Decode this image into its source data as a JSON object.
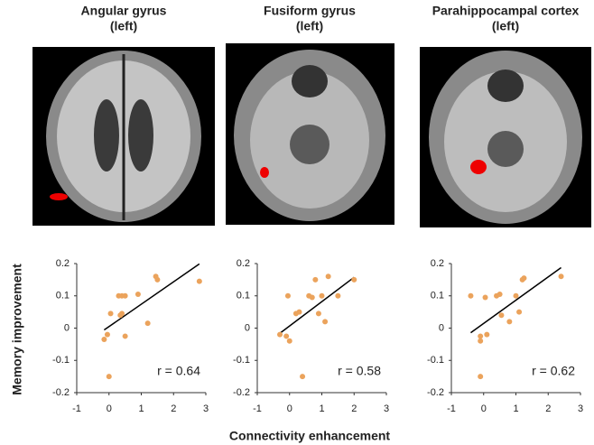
{
  "shared_axes": {
    "ylabel": "Memory improvement",
    "xlabel": "Connectivity enhancement"
  },
  "chart_data": [
    {
      "type": "scatter",
      "title": "Angular gyrus",
      "subtitle": "(left)",
      "annotation": "r = 0.64",
      "color": "#eba35c",
      "x": [
        -0.15,
        -0.05,
        0.05,
        0.0,
        0.3,
        0.4,
        0.5,
        0.35,
        0.4,
        0.5,
        0.9,
        1.2,
        1.45,
        1.5,
        2.8
      ],
      "y": [
        -0.035,
        -0.02,
        0.045,
        -0.15,
        0.1,
        0.1,
        0.1,
        0.04,
        0.045,
        -0.025,
        0.105,
        0.015,
        0.16,
        0.15,
        0.145
      ],
      "xlim": [
        -1,
        3
      ],
      "ylim": [
        -0.2,
        0.2
      ],
      "xticks": [
        -1,
        0,
        1,
        2,
        3
      ],
      "yticks": [
        -0.2,
        -0.1,
        0,
        0.1,
        0.2
      ]
    },
    {
      "type": "scatter",
      "title": "Fusiform gyrus",
      "subtitle": "(left)",
      "annotation": "r = 0.58",
      "color": "#eba35c",
      "x": [
        -0.3,
        -0.1,
        0.0,
        -0.05,
        0.2,
        0.3,
        0.4,
        0.6,
        0.7,
        0.8,
        0.9,
        1.0,
        1.1,
        1.2,
        1.5,
        2.0
      ],
      "y": [
        -0.02,
        -0.025,
        -0.04,
        0.1,
        0.045,
        0.05,
        -0.15,
        0.1,
        0.095,
        0.15,
        0.045,
        0.1,
        0.02,
        0.16,
        0.1,
        0.15
      ],
      "xlim": [
        -1,
        3
      ],
      "ylim": [
        -0.2,
        0.2
      ],
      "xticks": [
        -1,
        0,
        1,
        2,
        3
      ],
      "yticks": [
        -0.2,
        -0.1,
        0,
        0.1,
        0.2
      ]
    },
    {
      "type": "scatter",
      "title": "Parahippocampal cortex",
      "subtitle": "(left)",
      "annotation": "r = 0.62",
      "color": "#eba35c",
      "x": [
        -0.4,
        -0.1,
        -0.1,
        -0.1,
        0.05,
        0.1,
        0.4,
        0.5,
        0.55,
        0.8,
        1.0,
        1.1,
        1.2,
        1.25,
        2.4
      ],
      "y": [
        0.1,
        -0.025,
        -0.04,
        -0.15,
        0.095,
        -0.02,
        0.1,
        0.105,
        0.04,
        0.02,
        0.1,
        0.05,
        0.15,
        0.155,
        0.16
      ],
      "xlim": [
        -1,
        3
      ],
      "ylim": [
        -0.2,
        0.2
      ],
      "xticks": [
        -1,
        0,
        1,
        2,
        3
      ],
      "yticks": [
        -0.2,
        -0.1,
        0,
        0.1,
        0.2
      ]
    }
  ]
}
